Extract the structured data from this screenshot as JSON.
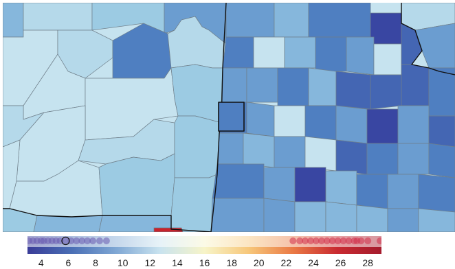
{
  "legend": {
    "min": 3,
    "max": 29,
    "ticks": [
      "4",
      "6",
      "8",
      "10",
      "12",
      "14",
      "16",
      "18",
      "20",
      "22",
      "24",
      "26",
      "28"
    ],
    "tick_values": [
      4,
      6,
      8,
      10,
      12,
      14,
      16,
      18,
      20,
      22,
      24,
      26,
      28
    ],
    "selected_value": 5.8,
    "color_stops": [
      "#3a3c98",
      "#4a6fb5",
      "#7fa7d4",
      "#c9e3ef",
      "#f7f4c8",
      "#f7c77a",
      "#ea7a45",
      "#c92a31",
      "#a51c2d"
    ],
    "dot_values": [
      3.1,
      3.4,
      3.7,
      4.0,
      4.2,
      4.5,
      4.8,
      5.1,
      5.4,
      5.8,
      6.2,
      6.6,
      7.0,
      7.4,
      7.8,
      8.3,
      8.8,
      22.5,
      23.0,
      23.4,
      23.8,
      24.2,
      24.6,
      25.0,
      25.4,
      25.8,
      26.2,
      26.6,
      27.0,
      27.2,
      27.5,
      28.0,
      28.9,
      29.3
    ]
  },
  "map": {
    "selected_county": "highlighted-county",
    "colors": {
      "very_light": "#c6e3ef",
      "light": "#b5d9ea",
      "light_mid": "#9ccbe3",
      "mid": "#86b7dc",
      "mid_dark": "#6b9dd0",
      "dark": "#4f7fc1",
      "darker": "#4466b3",
      "darkest": "#3946a2",
      "red": "#c8232c",
      "border": "#6f7f8a",
      "state_border": "#111111"
    }
  }
}
